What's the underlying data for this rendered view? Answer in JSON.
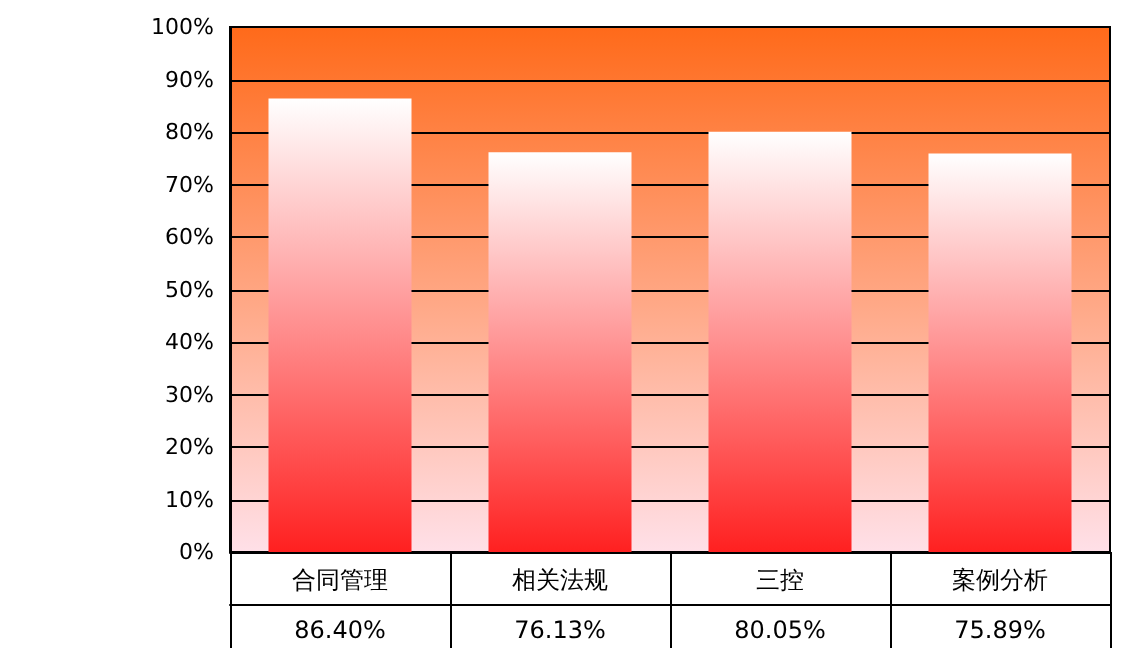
{
  "chart_data": {
    "type": "bar",
    "categories": [
      "合同管理",
      "相关法规",
      "三控",
      "案例分析"
    ],
    "series": [
      {
        "color": "#ff2020",
        "values": [
          86.4,
          76.13,
          80.05,
          75.89
        ],
        "value_labels": [
          "86.40%",
          "76.13%",
          "80.05%",
          "75.89%"
        ]
      }
    ],
    "ylim": [
      0,
      100
    ],
    "yticks": [
      {
        "value": 0,
        "label": "0%"
      },
      {
        "value": 10,
        "label": "10%"
      },
      {
        "value": 20,
        "label": "20%"
      },
      {
        "value": 30,
        "label": "30%"
      },
      {
        "value": 40,
        "label": "40%"
      },
      {
        "value": 50,
        "label": "50%"
      },
      {
        "value": 60,
        "label": "60%"
      },
      {
        "value": 70,
        "label": "70%"
      },
      {
        "value": 80,
        "label": "80%"
      },
      {
        "value": 90,
        "label": "90%"
      },
      {
        "value": 100,
        "label": "100%"
      }
    ],
    "grid": "y"
  }
}
